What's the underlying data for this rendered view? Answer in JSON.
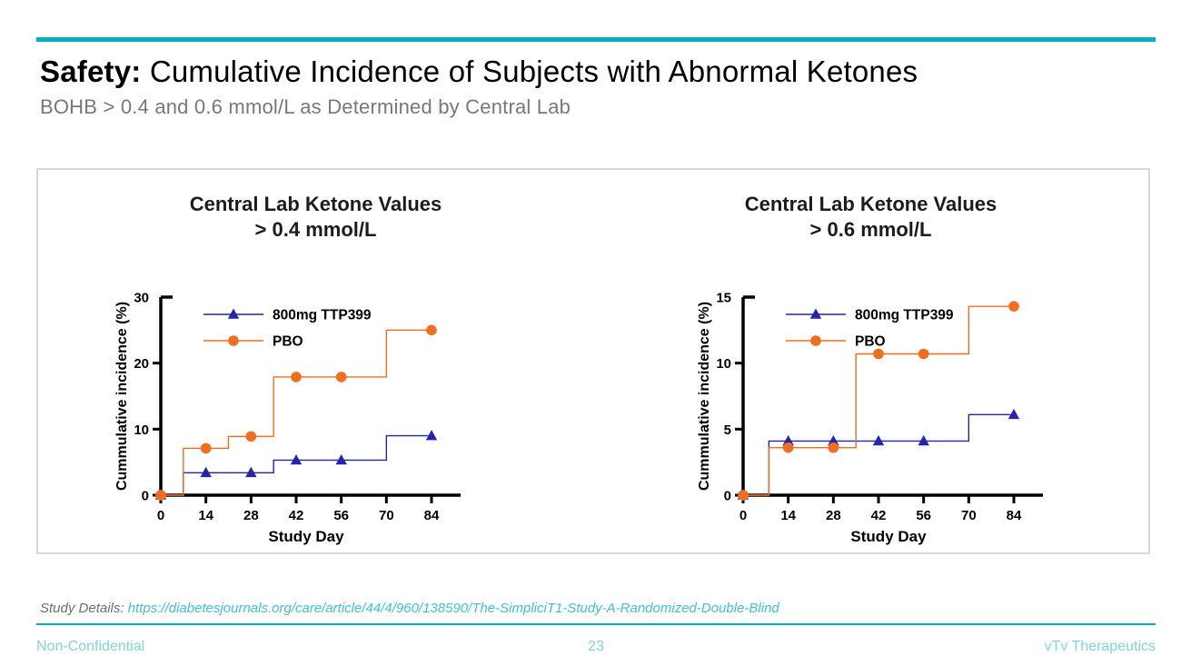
{
  "slide": {
    "title_bold": "Safety:",
    "title_rest": " Cumulative Incidence of Subjects with Abnormal Ketones",
    "subtitle": "BOHB > 0.4 and 0.6 mmol/L as Determined by Central Lab"
  },
  "footer": {
    "study_details_label": "Study Details: ",
    "study_details_link": "https://diabetesjournals.org/care/article/44/4/960/138590/The-SimpliciT1-Study-A-Randomized-Double-Blind",
    "confidentiality": "Non-Confidential",
    "page_number": "23",
    "company": "vTv Therapeutics"
  },
  "colors": {
    "teal": "#00B0BD",
    "footer_text": "#7ED5DD",
    "link": "#3FC1D6",
    "subtitle_gray": "#77787B",
    "details_gray": "#6D6E71",
    "ttp399_blue": "#2323B4",
    "pbo_orange": "#F26E1E"
  },
  "chart_data": [
    {
      "type": "line",
      "step": true,
      "title_line1": "Central Lab Ketone Values",
      "title_line2": "> 0.4 mmol/L",
      "xlabel": "Study Day",
      "ylabel": "Cummulative incidence (%)",
      "xlim": [
        0,
        93
      ],
      "ylim": [
        0,
        30
      ],
      "xticks": [
        0,
        14,
        28,
        42,
        56,
        70,
        84
      ],
      "yticks": [
        0,
        10,
        20,
        30
      ],
      "grid": false,
      "legend_position": "top-left-inside",
      "series": [
        {
          "name": "800mg TTP399",
          "color": "#2323B4",
          "marker": "triangle",
          "steps": [
            [
              0,
              0
            ],
            [
              7,
              0
            ],
            [
              7,
              3.4
            ],
            [
              35,
              3.4
            ],
            [
              35,
              5.3
            ],
            [
              70,
              5.3
            ],
            [
              70,
              9.0
            ],
            [
              83,
              9.0
            ]
          ],
          "markers": [
            [
              0,
              0
            ],
            [
              14,
              3.4
            ],
            [
              28,
              3.4
            ],
            [
              42,
              5.3
            ],
            [
              56,
              5.3
            ],
            [
              84,
              9.0
            ]
          ]
        },
        {
          "name": "PBO",
          "color": "#F26E1E",
          "marker": "circle",
          "steps": [
            [
              0,
              0
            ],
            [
              7,
              0
            ],
            [
              7,
              7.1
            ],
            [
              21,
              7.1
            ],
            [
              21,
              8.9
            ],
            [
              35,
              8.9
            ],
            [
              35,
              17.9
            ],
            [
              70,
              17.9
            ],
            [
              70,
              25.0
            ],
            [
              83,
              25.0
            ]
          ],
          "markers": [
            [
              0,
              0
            ],
            [
              14,
              7.1
            ],
            [
              28,
              8.9
            ],
            [
              42,
              17.9
            ],
            [
              56,
              17.9
            ],
            [
              84,
              25.0
            ]
          ]
        }
      ]
    },
    {
      "type": "line",
      "step": true,
      "title_line1": "Central Lab Ketone Values",
      "title_line2": "> 0.6 mmol/L",
      "xlabel": "Study Day",
      "ylabel": "Cummulative incidence (%)",
      "xlim": [
        0,
        93
      ],
      "ylim": [
        0,
        15
      ],
      "xticks": [
        0,
        14,
        28,
        42,
        56,
        70,
        84
      ],
      "yticks": [
        0,
        5,
        10,
        15
      ],
      "grid": false,
      "legend_position": "top-left-inside",
      "series": [
        {
          "name": "800mg TTP399",
          "color": "#2323B4",
          "marker": "triangle",
          "steps": [
            [
              0,
              0
            ],
            [
              8,
              0
            ],
            [
              8,
              4.1
            ],
            [
              70,
              4.1
            ],
            [
              70,
              6.1
            ],
            [
              83,
              6.1
            ]
          ],
          "markers": [
            [
              0,
              0
            ],
            [
              14,
              4.1
            ],
            [
              28,
              4.1
            ],
            [
              42,
              4.1
            ],
            [
              56,
              4.1
            ],
            [
              84,
              6.1
            ]
          ]
        },
        {
          "name": "PBO",
          "color": "#F26E1E",
          "marker": "circle",
          "steps": [
            [
              0,
              0
            ],
            [
              8,
              0
            ],
            [
              8,
              3.6
            ],
            [
              35,
              3.6
            ],
            [
              35,
              10.7
            ],
            [
              70,
              10.7
            ],
            [
              70,
              14.3
            ],
            [
              83,
              14.3
            ]
          ],
          "markers": [
            [
              0,
              0
            ],
            [
              14,
              3.6
            ],
            [
              28,
              3.6
            ],
            [
              42,
              10.7
            ],
            [
              56,
              10.7
            ],
            [
              84,
              14.3
            ]
          ]
        }
      ]
    }
  ]
}
